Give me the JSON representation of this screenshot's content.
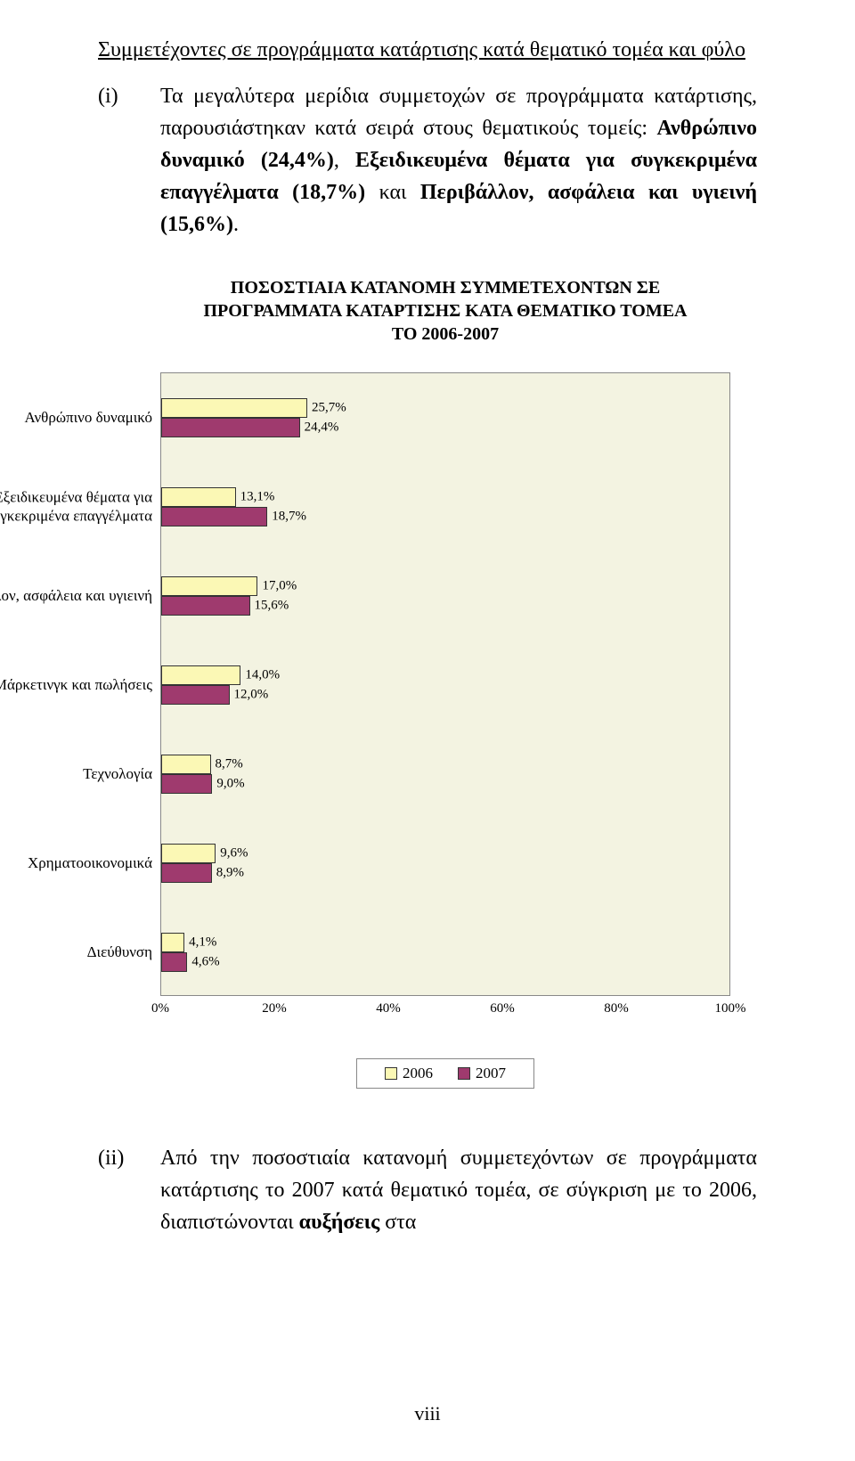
{
  "heading": "Συμμετέχοντες σε προγράμματα κατάρτισης κατά θεματικό τομέα και φύλο",
  "para1": {
    "marker": "(i)",
    "text_parts": [
      {
        "t": "Τα μεγαλύτερα μερίδια συμμετοχών σε προγράμματα κατάρτισης, παρουσιάστηκαν κατά σειρά στους θεματικούς τομείς: ",
        "b": false
      },
      {
        "t": "Ανθρώπινο δυναμικό (24,4%)",
        "b": true
      },
      {
        "t": ", ",
        "b": false
      },
      {
        "t": "Εξειδικευμένα θέματα για συγκεκριμένα επαγγέλματα (18,7%)",
        "b": true
      },
      {
        "t": " και ",
        "b": false
      },
      {
        "t": "Περιβάλλον, ασφάλεια και υγιεινή (15,6%)",
        "b": true
      },
      {
        "t": ".",
        "b": false
      }
    ]
  },
  "chart": {
    "title_lines": [
      "ΠΟΣΟΣΤΙΑΙΑ ΚΑΤΑΝΟΜΗ ΣΥΜΜΕΤΕΧΟΝΤΩΝ ΣΕ",
      "ΠΡΟΓΡΑΜΜΑΤΑ ΚΑΤΑΡΤΙΣΗΣ ΚΑΤΑ ΘΕΜΑΤΙΚΟ ΤΟΜΕΑ",
      "ΤΟ 2006-2007"
    ],
    "type": "grouped-horizontal-bar",
    "xmax": 100,
    "plot_bg": "#f3f3e1",
    "border_color": "#888888",
    "series": [
      {
        "name": "2006",
        "color": "#fbf8b5"
      },
      {
        "name": "2007",
        "color": "#9f3a6e"
      }
    ],
    "categories": [
      {
        "label": "Ανθρώπινο δυναμικό",
        "values": [
          "25,7%",
          "24,4%"
        ],
        "pct": [
          25.7,
          24.4
        ]
      },
      {
        "label": "Εξειδικευμένα θέματα για συγκεκριμένα επαγγέλματα",
        "values": [
          "13,1%",
          "18,7%"
        ],
        "pct": [
          13.1,
          18.7
        ]
      },
      {
        "label": "Περιβάλλον, ασφάλεια και υγιεινή",
        "values": [
          "17,0%",
          "15,6%"
        ],
        "pct": [
          17.0,
          15.6
        ]
      },
      {
        "label": "Μάρκετινγκ και πωλήσεις",
        "values": [
          "14,0%",
          "12,0%"
        ],
        "pct": [
          14.0,
          12.0
        ]
      },
      {
        "label": "Τεχνολογία",
        "values": [
          "8,7%",
          "9,0%"
        ],
        "pct": [
          8.7,
          9.0
        ]
      },
      {
        "label": "Χρηματοοικονομικά",
        "values": [
          "9,6%",
          "8,9%"
        ],
        "pct": [
          9.6,
          8.9
        ]
      },
      {
        "label": "Διεύθυνση",
        "values": [
          "4,1%",
          "4,6%"
        ],
        "pct": [
          4.1,
          4.6
        ]
      }
    ],
    "x_ticks": [
      "0%",
      "20%",
      "40%",
      "60%",
      "80%",
      "100%"
    ],
    "x_tick_positions": [
      0,
      20,
      40,
      60,
      80,
      100
    ],
    "legend_labels": [
      "2006",
      "2007"
    ]
  },
  "para2": {
    "marker": "(ii)",
    "text_parts": [
      {
        "t": "Από την ποσοστιαία κατανομή συμμετεχόντων σε προγράμματα κατάρτισης το 2007 κατά θεματικό τομέα, σε σύγκριση με το 2006, διαπιστώνονται ",
        "b": false
      },
      {
        "t": "αυξήσεις",
        "b": true
      },
      {
        "t": " στα",
        "b": false
      }
    ]
  },
  "page_number": "viii"
}
